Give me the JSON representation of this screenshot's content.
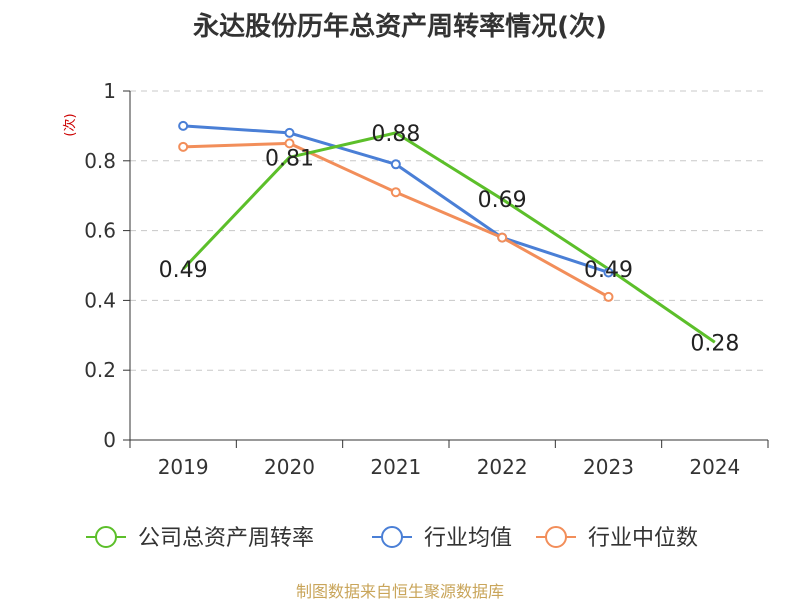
{
  "chart_data": {
    "type": "line",
    "title": "永达股份历年总资产周转率情况(次)",
    "ylabel": "(次)",
    "xlabel": "",
    "ylim": [
      0,
      1
    ],
    "yticks": [
      0,
      0.2,
      0.4,
      0.6,
      0.8,
      1
    ],
    "ytick_labels": [
      "0",
      "0.2",
      "0.4",
      "0.6",
      "0.8",
      "1"
    ],
    "categories": [
      "2019",
      "2020",
      "2021",
      "2022",
      "2023",
      "2024"
    ],
    "grid": true,
    "legend_position": "bottom",
    "series": [
      {
        "name": "公司总资产周转率",
        "color": "#5cbf2a",
        "values": [
          0.49,
          0.81,
          0.88,
          0.69,
          0.49,
          0.28
        ],
        "labels": [
          "0.49",
          "0.81",
          "0.88",
          "0.69",
          "0.49",
          "0.28"
        ]
      },
      {
        "name": "行业均值",
        "color": "#4a7fd6",
        "values": [
          0.9,
          0.88,
          0.79,
          0.58,
          0.48,
          null
        ]
      },
      {
        "name": "行业中位数",
        "color": "#f28e5a",
        "values": [
          0.84,
          0.85,
          0.71,
          0.58,
          0.41,
          null
        ]
      }
    ]
  },
  "source_text": "制图数据来自恒生聚源数据库"
}
